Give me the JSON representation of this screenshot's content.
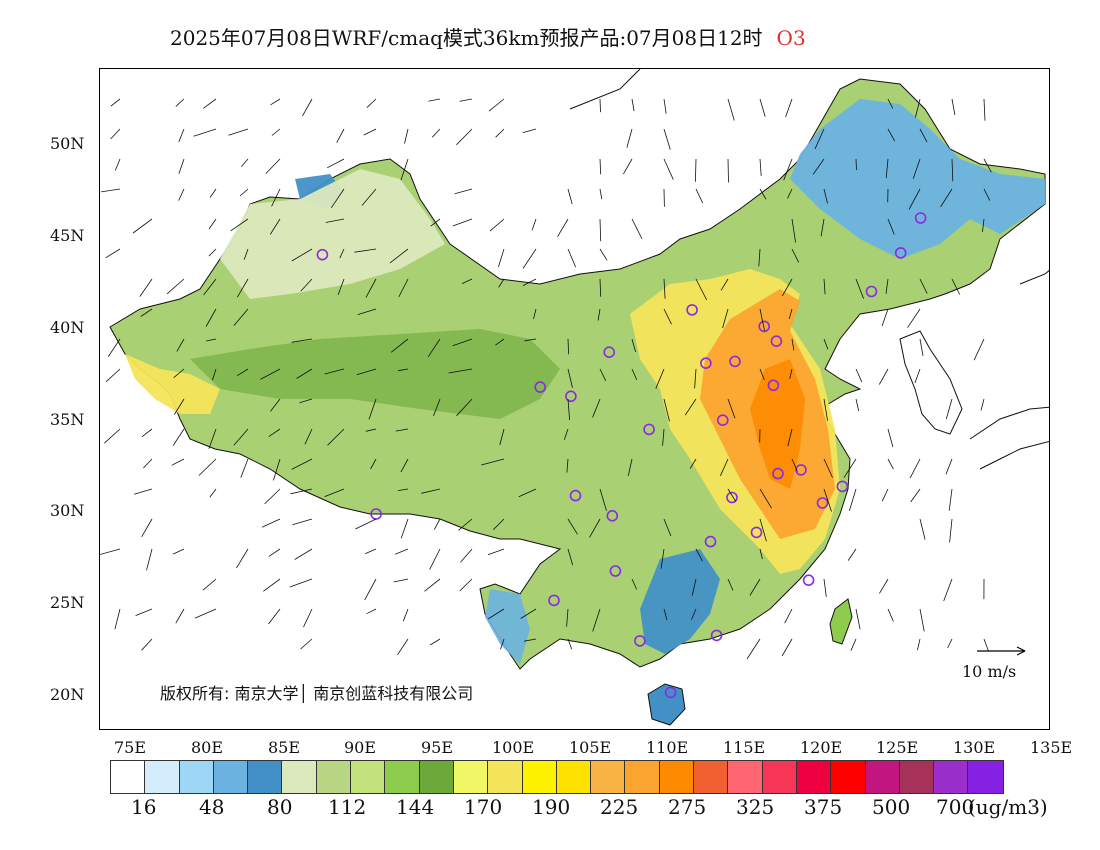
{
  "title": "2025年07月08日WRF/cmaq模式36km预报产品:07月08日12时",
  "species": "O3",
  "copyright": "版权所有: 南京大学│ 南京创蓝科技有限公司",
  "reference_vector_label": "10 m/s",
  "units": "(ug/m3)",
  "lat_labels": [
    "50N",
    "45N",
    "40N",
    "35N",
    "30N",
    "25N",
    "20N"
  ],
  "lon_labels": [
    "75E",
    "80E",
    "85E",
    "90E",
    "95E",
    "100E",
    "105E",
    "110E",
    "115E",
    "120E",
    "125E",
    "130E",
    "135E"
  ],
  "colorbar": {
    "colors": [
      "#ffffff",
      "#d4ecfb",
      "#9ed7f5",
      "#6cb2e0",
      "#4290c6",
      "#dce9bd",
      "#b9d684",
      "#c3e17c",
      "#8ecc4e",
      "#6da83a",
      "#f2f767",
      "#f4e45a",
      "#fff200",
      "#ffe100",
      "#f9b342",
      "#fba530",
      "#fd8a00",
      "#f06030",
      "#ff6570",
      "#f73557",
      "#ee0040",
      "#ff0000",
      "#c31580",
      "#a63159",
      "#9a2fcc",
      "#8620e2"
    ],
    "labels": [
      "16",
      "48",
      "80",
      "112",
      "144",
      "170",
      "190",
      "225",
      "275",
      "325",
      "375",
      "500",
      "700"
    ]
  },
  "stations": [
    {
      "lon": 87.6,
      "lat": 43.8
    },
    {
      "lon": 101.8,
      "lat": 36.6
    },
    {
      "lon": 103.8,
      "lat": 36.1
    },
    {
      "lon": 106.3,
      "lat": 38.5
    },
    {
      "lon": 111.7,
      "lat": 40.8
    },
    {
      "lon": 116.4,
      "lat": 39.9
    },
    {
      "lon": 117.2,
      "lat": 39.1
    },
    {
      "lon": 114.5,
      "lat": 38.0
    },
    {
      "lon": 112.6,
      "lat": 37.9
    },
    {
      "lon": 117.0,
      "lat": 36.7
    },
    {
      "lon": 113.7,
      "lat": 34.8
    },
    {
      "lon": 108.9,
      "lat": 34.3
    },
    {
      "lon": 104.1,
      "lat": 30.7
    },
    {
      "lon": 106.5,
      "lat": 29.6
    },
    {
      "lon": 114.3,
      "lat": 30.6
    },
    {
      "lon": 117.3,
      "lat": 31.9
    },
    {
      "lon": 118.8,
      "lat": 32.1
    },
    {
      "lon": 121.5,
      "lat": 31.2
    },
    {
      "lon": 120.2,
      "lat": 30.3
    },
    {
      "lon": 115.9,
      "lat": 28.7
    },
    {
      "lon": 112.9,
      "lat": 28.2
    },
    {
      "lon": 106.7,
      "lat": 26.6
    },
    {
      "lon": 102.7,
      "lat": 25.0
    },
    {
      "lon": 108.3,
      "lat": 22.8
    },
    {
      "lon": 113.3,
      "lat": 23.1
    },
    {
      "lon": 119.3,
      "lat": 26.1
    },
    {
      "lon": 110.3,
      "lat": 20.0
    },
    {
      "lon": 123.4,
      "lat": 41.8
    },
    {
      "lon": 125.3,
      "lat": 43.9
    },
    {
      "lon": 126.6,
      "lat": 45.8
    },
    {
      "lon": 91.1,
      "lat": 29.7
    }
  ]
}
